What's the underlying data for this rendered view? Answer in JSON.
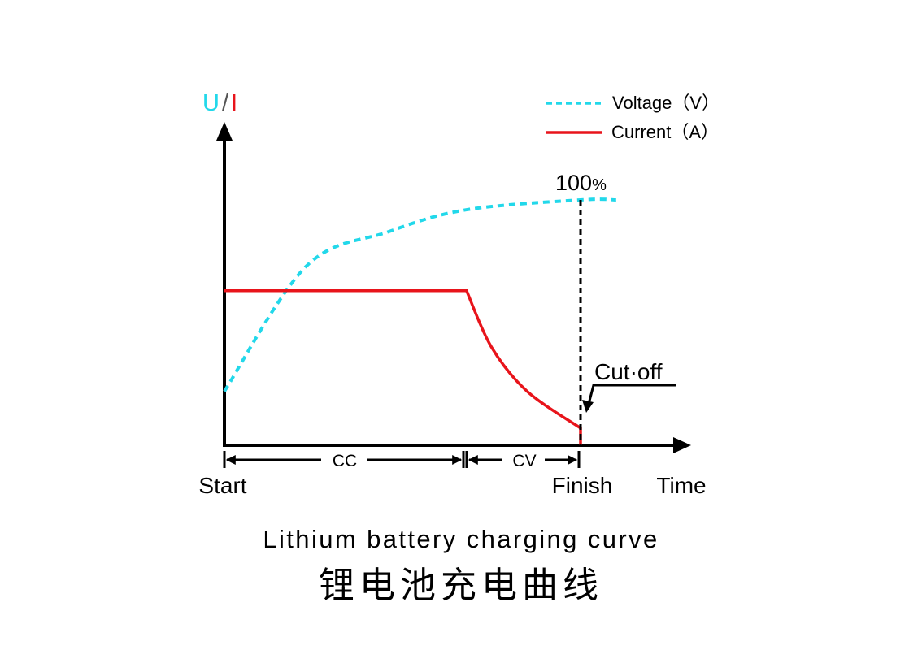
{
  "chart_data": {
    "type": "line",
    "y_label": {
      "voltage_symbol": "U",
      "separator": "/",
      "current_symbol": "I"
    },
    "x_label": "Time",
    "legend": {
      "position": "top-right",
      "entries": [
        {
          "label": "Voltage（V）",
          "style": "dashed",
          "color": "#22d8ea"
        },
        {
          "label": "Current（A）",
          "style": "solid",
          "color": "#e8141b"
        }
      ]
    },
    "phases": [
      {
        "label": "CC",
        "from": 0,
        "to": 0.68
      },
      {
        "label": "CV",
        "from": 0.68,
        "to": 1.0
      }
    ],
    "x_markers": [
      {
        "label": "Start",
        "x": 0
      },
      {
        "label": "Finish",
        "x": 1.0
      }
    ],
    "series": [
      {
        "name": "Voltage（V）",
        "shape": "saturating",
        "points": [
          [
            0,
            0.22
          ],
          [
            0.23,
            0.73
          ],
          [
            0.46,
            0.87
          ],
          [
            0.68,
            0.96
          ],
          [
            1.0,
            1.0
          ],
          [
            1.1,
            1.0
          ]
        ]
      },
      {
        "name": "Current（A）",
        "shape": "constant then decaying",
        "points": [
          [
            0,
            0.63
          ],
          [
            0.68,
            0.63
          ],
          [
            0.75,
            0.4
          ],
          [
            0.85,
            0.22
          ],
          [
            1.0,
            0.07
          ],
          [
            1.0,
            0
          ]
        ]
      }
    ],
    "annotations": [
      {
        "text": "100%",
        "at": "voltage reaching full at Finish"
      },
      {
        "text": "Cut-off",
        "at": "current drop at Finish"
      }
    ],
    "colors": {
      "voltage": "#22d8ea",
      "current": "#e8141b",
      "axis": "#000000"
    }
  },
  "titles": {
    "english": "Lithium battery charging curve",
    "chinese": "锂电池充电曲线"
  },
  "labels": {
    "hundred_main": "100",
    "hundred_pct": "%",
    "cutoff": "Cut·off"
  }
}
